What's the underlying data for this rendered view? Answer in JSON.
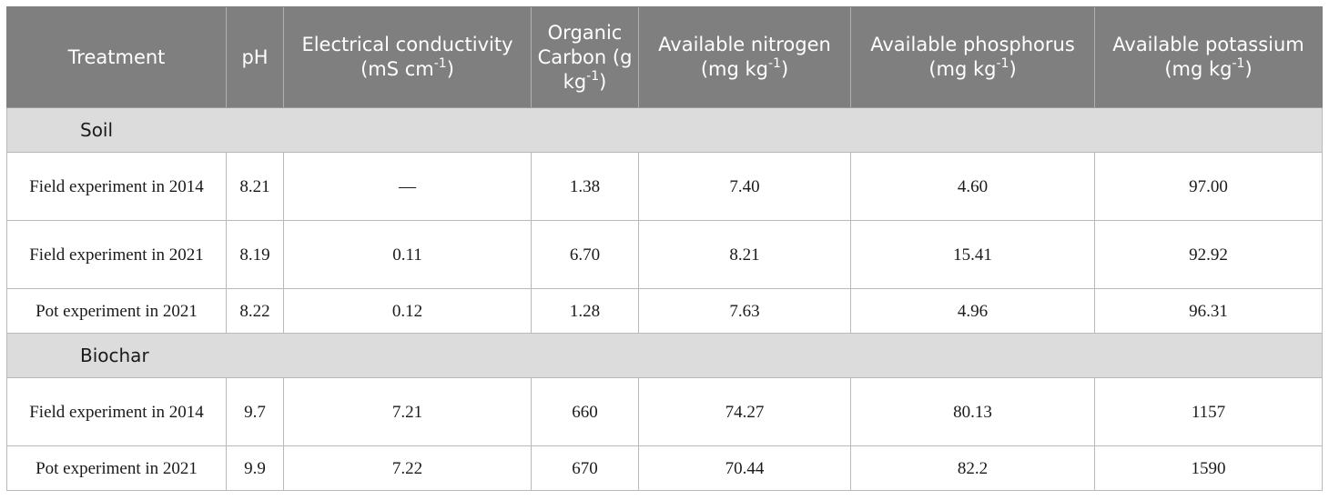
{
  "headers": [
    {
      "text": "Treatment",
      "sup": "",
      "tail": ""
    },
    {
      "text": "pH",
      "sup": "",
      "tail": ""
    },
    {
      "text": "Electrical conductivity (mS cm",
      "sup": "-1",
      "tail": ")"
    },
    {
      "text": "Organic Carbon (g kg",
      "sup": "-1",
      "tail": ")"
    },
    {
      "text": "Available nitrogen (mg kg",
      "sup": "-1",
      "tail": ")"
    },
    {
      "text": "Available phosphorus (mg kg",
      "sup": "-1",
      "tail": ")"
    },
    {
      "text": "Available potassium (mg kg",
      "sup": "-1",
      "tail": ")"
    }
  ],
  "sections": [
    {
      "label": "Soil",
      "rows": [
        {
          "cells": [
            "Field experiment in 2014",
            "8.21",
            "—",
            "1.38",
            "7.40",
            "4.60",
            "97.00"
          ]
        },
        {
          "cells": [
            "Field experiment in 2021",
            "8.19",
            "0.11",
            "6.70",
            "8.21",
            "15.41",
            "92.92"
          ]
        },
        {
          "cells": [
            "Pot experiment in 2021",
            "8.22",
            "0.12",
            "1.28",
            "7.63",
            "4.96",
            "96.31"
          ]
        }
      ]
    },
    {
      "label": "Biochar",
      "rows": [
        {
          "cells": [
            "Field experiment in 2014",
            "9.7",
            "7.21",
            "660",
            "74.27",
            "80.13",
            "1157"
          ]
        },
        {
          "cells": [
            "Pot experiment in 2021",
            "9.9",
            "7.22",
            "670",
            "70.44",
            "82.2",
            "1590"
          ]
        }
      ]
    }
  ]
}
